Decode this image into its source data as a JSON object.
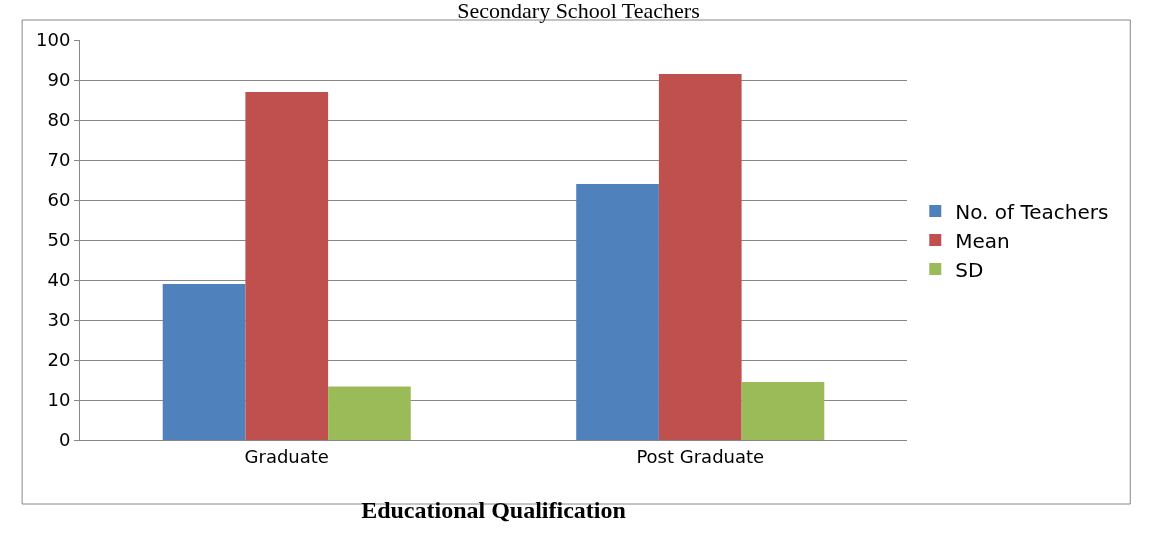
{
  "chart_data": {
    "type": "bar",
    "title": "Secondary School Teachers",
    "xlabel": "Educational Qualification",
    "categories": [
      "Graduate",
      "Post Graduate"
    ],
    "series": [
      {
        "name": "No. of Teachers",
        "color": "#4f81bd",
        "values": [
          39,
          64
        ]
      },
      {
        "name": "Mean",
        "color": "#c0504d",
        "values": [
          87,
          91.5
        ]
      },
      {
        "name": "SD",
        "color": "#9bbb59",
        "values": [
          13.4,
          14.5
        ]
      }
    ],
    "ylim": [
      0,
      100
    ],
    "yticks": [
      0,
      10,
      20,
      30,
      40,
      50,
      60,
      70,
      80,
      90,
      100
    ],
    "grid": "y",
    "legend": "right"
  }
}
